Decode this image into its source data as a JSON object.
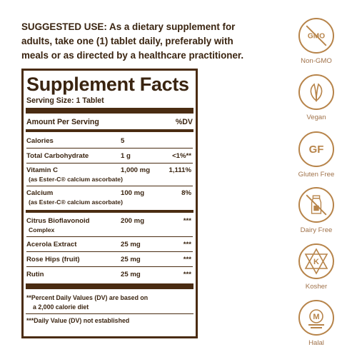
{
  "suggested_use": {
    "lead": "SUGGESTED USE:",
    "text": " As a dietary supplement for adults, take one (1) tablet daily, preferably with meals or as directed by a healthcare practitioner."
  },
  "facts": {
    "title": "Supplement Facts",
    "serving_size": "Serving Size: 1 Tablet",
    "amount_header": "Amount Per Serving",
    "dv_header": "%DV",
    "rows": [
      {
        "name": "Calories",
        "amount": "5",
        "dv": ""
      },
      {
        "name": "Total Carbohydrate",
        "amount": "1 g",
        "dv": "<1%**"
      },
      {
        "name": "Vitamin C",
        "sub": "(as Ester-C® calcium ascorbate)",
        "amount": "1,000 mg",
        "dv": "1,111%"
      },
      {
        "name": "Calcium",
        "sub": "(as Ester-C® calcium ascorbate)",
        "amount": "100 mg",
        "dv": "8%"
      },
      {
        "name": "Citrus Bioflavonoid",
        "sub": "Complex",
        "amount": "200 mg",
        "dv": "***"
      },
      {
        "name": "Acerola Extract",
        "amount": "25 mg",
        "dv": "***"
      },
      {
        "name": "Rose Hips (fruit)",
        "amount": "25 mg",
        "dv": "***"
      },
      {
        "name": "Rutin",
        "amount": "25 mg",
        "dv": "***"
      }
    ],
    "footnote1_a": "**Percent Daily Values (DV) are based on",
    "footnote1_b": "a 2,000 calorie diet",
    "footnote2": "***Daily Value (DV) not established"
  },
  "badges": [
    {
      "icon": "gmo-icon",
      "text": "GMO",
      "label": "Non-GMO"
    },
    {
      "icon": "leaf-icon",
      "label": "Vegan"
    },
    {
      "icon": "gluten-free-icon",
      "text": "GF",
      "label": "Gluten Free"
    },
    {
      "icon": "milk-bottle-icon",
      "label": "Dairy Free"
    },
    {
      "icon": "kosher-icon",
      "text": "K",
      "label": "Kosher"
    },
    {
      "icon": "halal-icon",
      "text": "M",
      "label": "Halal"
    }
  ],
  "colors": {
    "text": "#3a2410",
    "rule": "#4a2c12",
    "badge": "#b7844a"
  }
}
